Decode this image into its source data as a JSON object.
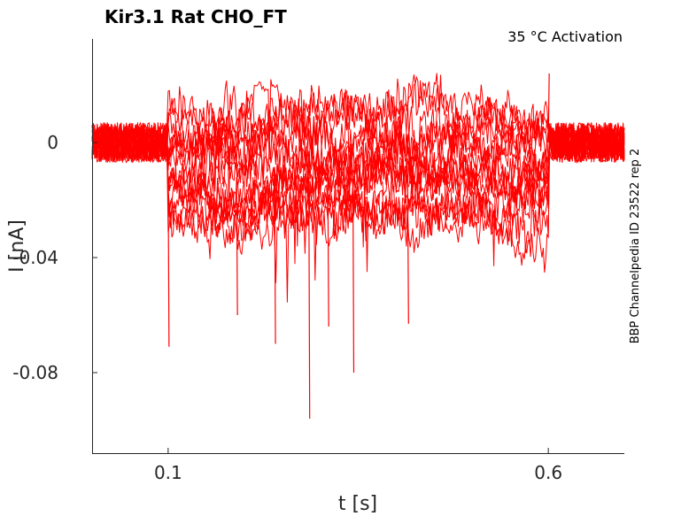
{
  "chart_data": {
    "type": "line",
    "title": "Kir3.1  Rat  CHO_FT",
    "subtitle": "35 °C  Activation",
    "side_note": "BBP Channelpedia ID 23522 rep 2",
    "xlabel": "t [s]",
    "ylabel": "I [nA]",
    "xlim": [
      0.0,
      0.7
    ],
    "ylim": [
      -0.108,
      0.036
    ],
    "x_ticks": [
      0.1,
      0.6
    ],
    "x_tick_labels": [
      "0.1",
      "0.6"
    ],
    "y_ticks": [
      0,
      -0.04,
      -0.08
    ],
    "y_tick_labels": [
      "0",
      "-0.04",
      "-0.08"
    ],
    "grid": false,
    "series_color": "#ff0000",
    "stimulus_window": [
      0.1,
      0.6
    ],
    "sweep_count": 16,
    "sweep_offsets": [
      0.012,
      0.009,
      0.006,
      0.003,
      0.0,
      -0.003,
      -0.006,
      -0.008,
      -0.01,
      -0.012,
      -0.014,
      -0.016,
      -0.019,
      -0.022,
      -0.025,
      -0.028
    ],
    "spikes": [
      {
        "t": 0.1,
        "i": -0.071
      },
      {
        "t": 0.19,
        "i": -0.06
      },
      {
        "t": 0.24,
        "i": -0.07
      },
      {
        "t": 0.285,
        "i": -0.096
      },
      {
        "t": 0.31,
        "i": -0.064
      },
      {
        "t": 0.343,
        "i": -0.08
      },
      {
        "t": 0.415,
        "i": -0.063
      },
      {
        "t": 0.6,
        "i": 0.024
      }
    ]
  }
}
